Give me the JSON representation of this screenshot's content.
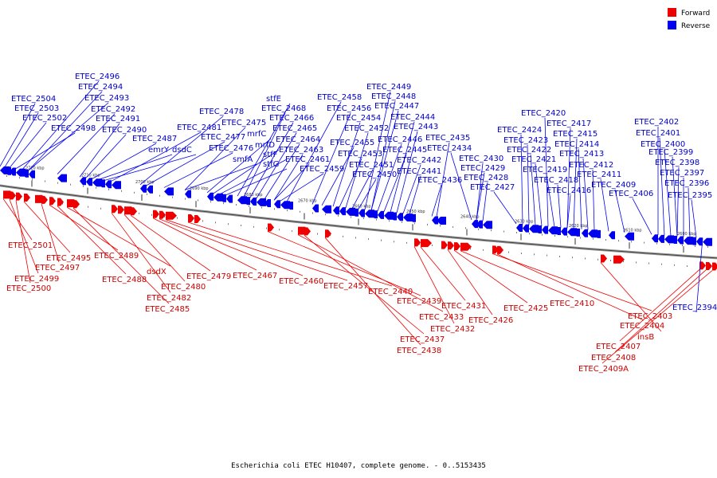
{
  "legend": {
    "forward_label": "Forward",
    "reverse_label": "Reverse",
    "forward_color": "#ee0000",
    "reverse_color": "#0000ee"
  },
  "caption": "Escherichia coli ETEC H10407, complete genome. - 0..5153435",
  "backbone_ticks": [
    "2720 kbp",
    "2710 kbp",
    "2700 kbp",
    "2690 kbp",
    "2680 kbp",
    "2670 kbp",
    "2660 kbp",
    "2650 kbp",
    "2640 kbp",
    "2630 kbp",
    "2620 kbp",
    "2610 kbp",
    "2600 kbp"
  ],
  "reverse_labels": [
    "ETEC_2504",
    "ETEC_2503",
    "ETEC_2502",
    "ETEC_2498",
    "ETEC_2496",
    "ETEC_2494",
    "ETEC_2493",
    "ETEC_2492",
    "ETEC_2491",
    "ETEC_2490",
    "ETEC_2487",
    "emrY",
    "dsdC",
    "ETEC_2481",
    "ETEC_2478",
    "ETEC_2477",
    "ETEC_2476",
    "ETEC_2475",
    "smfA",
    "mrfC",
    "mrfD",
    "stfF",
    "stfG",
    "stfE",
    "ETEC_2468",
    "ETEC_2466",
    "ETEC_2465",
    "ETEC_2464",
    "ETEC_2463",
    "ETEC_2461",
    "ETEC_2459",
    "ETEC_2458",
    "ETEC_2456",
    "ETEC_2455",
    "ETEC_2454",
    "ETEC_2453",
    "ETEC_2452",
    "ETEC_2451",
    "ETEC_2450",
    "ETEC_2449",
    "ETEC_2448",
    "ETEC_2447",
    "ETEC_2446",
    "ETEC_2445",
    "ETEC_2444",
    "ETEC_2443",
    "ETEC_2442",
    "ETEC_2441",
    "ETEC_2436",
    "ETEC_2435",
    "ETEC_2434",
    "ETEC_2430",
    "ETEC_2429",
    "ETEC_2428",
    "ETEC_2427",
    "ETEC_2424",
    "ETEC_2423",
    "ETEC_2422",
    "ETEC_2421",
    "ETEC_2420",
    "ETEC_2419",
    "ETEC_2418",
    "ETEC_2417",
    "ETEC_2416",
    "ETEC_2415",
    "ETEC_2414",
    "ETEC_2413",
    "ETEC_2412",
    "ETEC_2411",
    "ETEC_2409",
    "ETEC_2406",
    "ETEC_2402",
    "ETEC_2401",
    "ETEC_2400",
    "ETEC_2399",
    "ETEC_2398",
    "ETEC_2397",
    "ETEC_2396",
    "ETEC_2395",
    "ETEC_2394"
  ],
  "forward_labels": [
    "ETEC_2501",
    "ETEC_2499",
    "ETEC_2500",
    "ETEC_2495",
    "ETEC_2497",
    "ETEC_2489",
    "ETEC_2488",
    "dsdX",
    "ETEC_2485",
    "ETEC_2482",
    "ETEC_2480",
    "ETEC_2479",
    "ETEC_2467",
    "ETEC_2460",
    "ETEC_2457",
    "ETEC_2440",
    "ETEC_2439",
    "ETEC_2433",
    "ETEC_2437",
    "ETEC_2438",
    "ETEC_2432",
    "ETEC_2431",
    "ETEC_2426",
    "ETEC_2425",
    "ETEC_2410",
    "ETEC_2403",
    "ETEC_2404",
    "insB",
    "ETEC_2407",
    "ETEC_2408",
    "ETEC_2409A"
  ]
}
